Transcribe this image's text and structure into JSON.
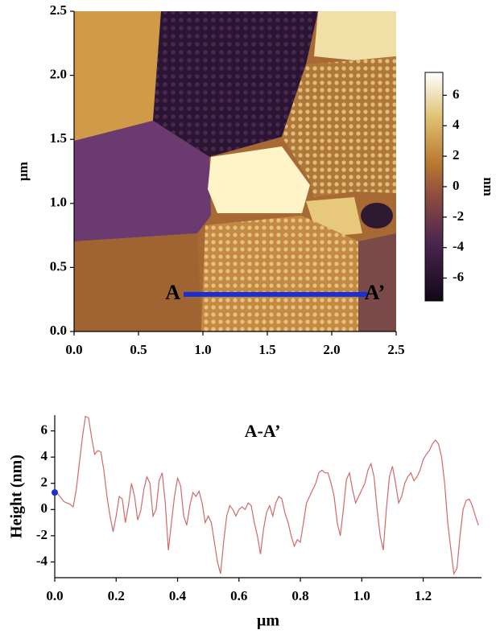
{
  "chart_data": [
    {
      "type": "image",
      "ylabel": "µm",
      "xlim": [
        0,
        2.5
      ],
      "ylim": [
        0,
        2.5
      ],
      "xticks": [
        {
          "value": 0,
          "label": "0.0"
        },
        0.5,
        {
          "value": 1,
          "label": "1.0"
        },
        1.5,
        {
          "value": 2,
          "label": "2.0"
        },
        2.5
      ],
      "yticks": [
        {
          "value": 0,
          "label": "0.0"
        },
        0.5,
        {
          "value": 1,
          "label": "1.0"
        },
        1.5,
        {
          "value": 2,
          "label": "2.0"
        },
        2.5
      ],
      "colorbar": {
        "label": "nm",
        "lim": [
          -7.5,
          7.5
        ],
        "ticks": [
          6,
          4,
          2,
          0,
          -2,
          -4,
          -6
        ]
      },
      "profile": {
        "start_label": "A",
        "end_label": "A’",
        "x": [
          0.85,
          2.28
        ],
        "y": [
          0.29,
          0.29
        ],
        "color": "#1a2fd0"
      }
    },
    {
      "type": "line",
      "title": "A-A’",
      "xlabel": "µm",
      "ylabel": "Height (nm)",
      "xlim": [
        0,
        1.39
      ],
      "ylim": [
        -5.2,
        7.2
      ],
      "xticks": [
        {
          "value": 0,
          "label": "0.0"
        },
        0.2,
        0.4,
        0.6,
        0.8,
        {
          "value": 1,
          "label": "1.0"
        },
        1.2
      ],
      "yticks": [
        -4,
        -2,
        0,
        2,
        4,
        6
      ],
      "marker_color": "#1a2fd0",
      "x": [
        0,
        0.01,
        0.02,
        0.03,
        0.05,
        0.06,
        0.07,
        0.08,
        0.09,
        0.1,
        0.11,
        0.12,
        0.13,
        0.14,
        0.15,
        0.16,
        0.17,
        0.18,
        0.19,
        0.2,
        0.21,
        0.22,
        0.23,
        0.24,
        0.25,
        0.26,
        0.27,
        0.28,
        0.29,
        0.3,
        0.31,
        0.32,
        0.33,
        0.34,
        0.35,
        0.36,
        0.37,
        0.38,
        0.39,
        0.4,
        0.41,
        0.42,
        0.43,
        0.44,
        0.45,
        0.46,
        0.47,
        0.48,
        0.49,
        0.5,
        0.51,
        0.52,
        0.53,
        0.54,
        0.55,
        0.56,
        0.57,
        0.58,
        0.59,
        0.6,
        0.61,
        0.62,
        0.63,
        0.64,
        0.65,
        0.66,
        0.67,
        0.68,
        0.69,
        0.7,
        0.71,
        0.72,
        0.73,
        0.74,
        0.75,
        0.76,
        0.77,
        0.78,
        0.79,
        0.8,
        0.81,
        0.82,
        0.83,
        0.84,
        0.85,
        0.86,
        0.87,
        0.88,
        0.89,
        0.9,
        0.91,
        0.92,
        0.93,
        0.94,
        0.95,
        0.96,
        0.97,
        0.98,
        0.99,
        1.0,
        1.01,
        1.02,
        1.03,
        1.04,
        1.05,
        1.06,
        1.07,
        1.08,
        1.09,
        1.1,
        1.11,
        1.12,
        1.13,
        1.14,
        1.15,
        1.16,
        1.17,
        1.18,
        1.19,
        1.2,
        1.21,
        1.22,
        1.23,
        1.24,
        1.25,
        1.26,
        1.27,
        1.28,
        1.29,
        1.3,
        1.31,
        1.32,
        1.33,
        1.34,
        1.35,
        1.36,
        1.37,
        1.38
      ],
      "series": [
        {
          "color": "#d06a6a",
          "values": [
            1.3,
            1.2,
            0.9,
            0.6,
            0.4,
            0.2,
            1.5,
            3.5,
            5.5,
            7.1,
            7.0,
            5.5,
            4.2,
            4.5,
            4.4,
            3.0,
            1.0,
            -0.5,
            -1.7,
            -0.5,
            1.0,
            0.8,
            -1.0,
            0.3,
            2.0,
            1.0,
            -0.8,
            -0.1,
            1.5,
            2.5,
            2.0,
            -0.5,
            0.0,
            2.2,
            2.8,
            0.5,
            -3.1,
            -1.0,
            1.0,
            2.4,
            1.8,
            -0.5,
            -1.2,
            0.3,
            1.3,
            1.0,
            1.4,
            0.5,
            -1.0,
            -0.5,
            -1.0,
            -2.5,
            -4.0,
            -4.9,
            -2.5,
            -0.5,
            0.3,
            0.0,
            -0.5,
            0.0,
            0.2,
            0.0,
            0.5,
            0.3,
            -1.0,
            -2.0,
            -3.4,
            -1.5,
            -0.2,
            0.3,
            -0.5,
            0.5,
            1.0,
            0.8,
            -0.3,
            -1.0,
            -2.0,
            -2.8,
            -2.3,
            -2.5,
            -1.0,
            0.5,
            1.0,
            1.5,
            2.0,
            2.8,
            3.0,
            2.8,
            2.8,
            2.0,
            1.0,
            -1.0,
            -2.0,
            0.0,
            2.3,
            2.8,
            1.5,
            0.5,
            1.0,
            1.5,
            2.0,
            3.0,
            3.5,
            2.5,
            0.0,
            -2.0,
            -3.1,
            0.0,
            2.5,
            3.3,
            2.0,
            0.5,
            1.0,
            2.0,
            2.5,
            2.8,
            2.2,
            2.5,
            3.0,
            3.8,
            4.2,
            4.5,
            5.0,
            5.3,
            5.0,
            4.0,
            2.0,
            -1.0,
            -3.0,
            -4.9,
            -4.5,
            -2.0,
            0.0,
            0.7,
            0.8,
            0.3,
            -0.5,
            -1.2
          ]
        }
      ]
    }
  ]
}
